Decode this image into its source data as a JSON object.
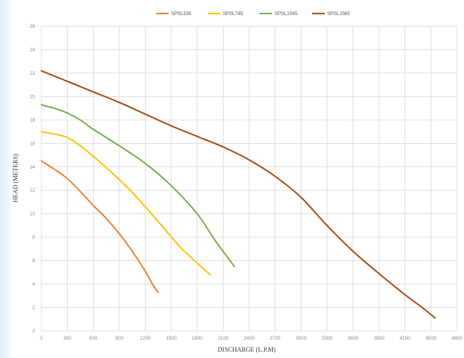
{
  "chart_data": {
    "type": "line",
    "xlabel": "DISCHARGE (L.P.M)",
    "ylabel": "HEAD (METERS)",
    "xlim": [
      0,
      4800
    ],
    "ylim": [
      0,
      26
    ],
    "x_ticks": [
      "0",
      "300",
      "600",
      "900",
      "1200",
      "1500",
      "1800",
      "2100",
      "2400",
      "2700",
      "3000",
      "3300",
      "3600",
      "3900",
      "4200",
      "4500",
      "4800"
    ],
    "y_ticks": [
      "0",
      "2",
      "4",
      "6",
      "8",
      "10",
      "12",
      "14",
      "16",
      "18",
      "20",
      "22",
      "24",
      "26"
    ],
    "grid": true,
    "legend_position": "top",
    "series": [
      {
        "name": "SPSL535",
        "color": "#ed7d31",
        "points": [
          [
            0,
            14.5
          ],
          [
            150,
            13.8
          ],
          [
            300,
            13.0
          ],
          [
            450,
            11.9
          ],
          [
            600,
            10.7
          ],
          [
            750,
            9.6
          ],
          [
            900,
            8.3
          ],
          [
            1050,
            6.8
          ],
          [
            1200,
            5.1
          ],
          [
            1300,
            3.8
          ],
          [
            1350,
            3.3
          ]
        ]
      },
      {
        "name": "SPSL745",
        "color": "#ffc000",
        "points": [
          [
            0,
            17.0
          ],
          [
            150,
            16.8
          ],
          [
            300,
            16.5
          ],
          [
            450,
            15.8
          ],
          [
            600,
            14.9
          ],
          [
            800,
            13.6
          ],
          [
            1000,
            12.2
          ],
          [
            1200,
            10.6
          ],
          [
            1400,
            8.9
          ],
          [
            1600,
            7.2
          ],
          [
            1800,
            5.8
          ],
          [
            1950,
            4.8
          ]
        ]
      },
      {
        "name": "SPSL1045",
        "color": "#70ad47",
        "points": [
          [
            0,
            19.3
          ],
          [
            150,
            19.0
          ],
          [
            300,
            18.6
          ],
          [
            450,
            18.0
          ],
          [
            600,
            17.2
          ],
          [
            900,
            15.8
          ],
          [
            1200,
            14.3
          ],
          [
            1500,
            12.4
          ],
          [
            1800,
            10.0
          ],
          [
            2000,
            7.8
          ],
          [
            2150,
            6.3
          ],
          [
            2230,
            5.5
          ]
        ]
      },
      {
        "name": "SPSL1565",
        "color": "#9e480e",
        "points": [
          [
            0,
            22.2
          ],
          [
            300,
            21.3
          ],
          [
            600,
            20.4
          ],
          [
            900,
            19.5
          ],
          [
            1200,
            18.5
          ],
          [
            1500,
            17.5
          ],
          [
            1800,
            16.6
          ],
          [
            2100,
            15.7
          ],
          [
            2400,
            14.6
          ],
          [
            2700,
            13.2
          ],
          [
            3000,
            11.4
          ],
          [
            3300,
            9.0
          ],
          [
            3600,
            6.8
          ],
          [
            3900,
            4.9
          ],
          [
            4200,
            3.1
          ],
          [
            4400,
            2.0
          ],
          [
            4550,
            1.1
          ]
        ]
      }
    ]
  }
}
